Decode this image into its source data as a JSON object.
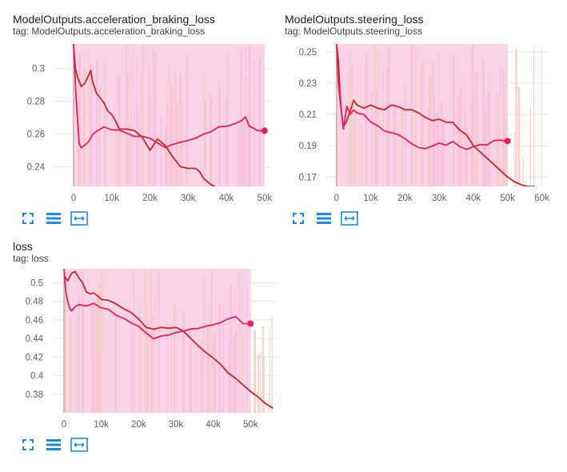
{
  "cards": [
    {
      "title": "ModelOutputs.acceleration_braking_loss",
      "tag": "tag: ModelOutputs.acceleration_braking_loss"
    },
    {
      "title": "ModelOutputs.steering_loss",
      "tag": "tag: ModelOutputs.steering_loss"
    },
    {
      "title": "loss",
      "tag": "tag: loss"
    }
  ],
  "toolbar_icons": [
    "fullscreen-icon",
    "toggle-log-scale-icon",
    "fit-domain-icon"
  ],
  "colors": {
    "smoothed_pink": "#e91e63",
    "smoothed_red": "#c62828",
    "raw_pink": "#f8bbd9",
    "raw_red": "#f5cfc8",
    "grid": "#e6e6e6"
  },
  "chart_data": [
    {
      "type": "line",
      "title": "ModelOutputs.acceleration_braking_loss",
      "xlim": [
        -5000,
        51500
      ],
      "ylim": [
        0.228,
        0.315
      ],
      "xticks": [
        0,
        10000,
        20000,
        30000,
        40000,
        50000
      ],
      "xtick_labels": [
        "0",
        "10k",
        "20k",
        "30k",
        "40k",
        "50k"
      ],
      "yticks": [
        0.24,
        0.26,
        0.28,
        0.3
      ],
      "ytick_labels": [
        "0.24",
        "0.26",
        "0.28",
        "0.3"
      ],
      "grid": true,
      "series": [
        {
          "color": "#e91e63",
          "x": [
            0,
            500,
            1000,
            1500,
            2000,
            3000,
            4000,
            5000,
            6000,
            8000,
            10000,
            12000,
            14000,
            16000,
            18000,
            20000,
            22000,
            24000,
            26000,
            28000,
            30000,
            32000,
            34000,
            36000,
            38000,
            40000,
            42000,
            44000,
            45000,
            46000,
            48000,
            50000
          ],
          "y": [
            0.315,
            0.29,
            0.27,
            0.254,
            0.251,
            0.253,
            0.256,
            0.26,
            0.262,
            0.265,
            0.263,
            0.262,
            0.26,
            0.259,
            0.258,
            0.258,
            0.255,
            0.252,
            0.254,
            0.255,
            0.256,
            0.258,
            0.26,
            0.262,
            0.264,
            0.265,
            0.266,
            0.268,
            0.27,
            0.265,
            0.262,
            0.262
          ]
        },
        {
          "color": "#c62828",
          "x": [
            0,
            500,
            1000,
            1500,
            2000,
            3000,
            4000,
            4500,
            5000,
            6000,
            7000,
            8000,
            9000,
            10000,
            11000,
            12000,
            14000,
            16000,
            18000,
            20000,
            22000,
            24000,
            26000,
            28000,
            30000,
            32000,
            33000,
            34000,
            35000,
            36000,
            37000
          ],
          "y": [
            0.315,
            0.3,
            0.295,
            0.292,
            0.289,
            0.291,
            0.296,
            0.299,
            0.292,
            0.285,
            0.282,
            0.279,
            0.274,
            0.272,
            0.268,
            0.263,
            0.263,
            0.262,
            0.258,
            0.25,
            0.257,
            0.253,
            0.246,
            0.24,
            0.239,
            0.239,
            0.237,
            0.233,
            0.231,
            0.229,
            0.228
          ]
        }
      ]
    },
    {
      "type": "line",
      "title": "ModelOutputs.steering_loss",
      "xlim": [
        -3000,
        62000
      ],
      "ylim": [
        0.164,
        0.255
      ],
      "xticks": [
        0,
        10000,
        20000,
        30000,
        40000,
        50000,
        60000
      ],
      "xtick_labels": [
        "0",
        "10k",
        "20k",
        "30k",
        "40k",
        "50k",
        "60k"
      ],
      "yticks": [
        0.17,
        0.19,
        0.21,
        0.23,
        0.25
      ],
      "ytick_labels": [
        "0.17",
        "0.19",
        "0.21",
        "0.23",
        "0.25"
      ],
      "grid": true,
      "series": [
        {
          "color": "#e91e63",
          "x": [
            0,
            500,
            1000,
            1500,
            2000,
            3000,
            4000,
            5000,
            6000,
            8000,
            10000,
            12000,
            14000,
            16000,
            18000,
            20000,
            22000,
            24000,
            26000,
            28000,
            30000,
            32000,
            34000,
            36000,
            38000,
            40000,
            42000,
            44000,
            46000,
            48000,
            50000
          ],
          "y": [
            0.255,
            0.23,
            0.22,
            0.21,
            0.2,
            0.215,
            0.21,
            0.213,
            0.211,
            0.21,
            0.205,
            0.203,
            0.2,
            0.199,
            0.197,
            0.195,
            0.192,
            0.189,
            0.188,
            0.19,
            0.191,
            0.19,
            0.192,
            0.19,
            0.187,
            0.189,
            0.191,
            0.19,
            0.193,
            0.193,
            0.193
          ]
        },
        {
          "color": "#c62828",
          "x": [
            0,
            500,
            1000,
            1500,
            2000,
            3000,
            4000,
            5000,
            6000,
            8000,
            10000,
            12000,
            14000,
            16000,
            18000,
            20000,
            22000,
            24000,
            26000,
            28000,
            30000,
            32000,
            34000,
            36000,
            38000,
            40000,
            42000,
            44000,
            46000,
            48000,
            50000,
            52000,
            54000,
            56000,
            58000
          ],
          "y": [
            0.255,
            0.245,
            0.225,
            0.21,
            0.202,
            0.206,
            0.212,
            0.219,
            0.216,
            0.214,
            0.216,
            0.214,
            0.213,
            0.216,
            0.215,
            0.213,
            0.213,
            0.211,
            0.208,
            0.206,
            0.207,
            0.205,
            0.205,
            0.2,
            0.197,
            0.19,
            0.186,
            0.182,
            0.178,
            0.174,
            0.17,
            0.167,
            0.165,
            0.164,
            0.164
          ]
        }
      ]
    },
    {
      "type": "line",
      "title": "loss",
      "xlim": [
        -3000,
        57000
      ],
      "ylim": [
        0.36,
        0.515
      ],
      "xticks": [
        0,
        10000,
        20000,
        30000,
        40000,
        50000
      ],
      "xtick_labels": [
        "0",
        "10k",
        "20k",
        "30k",
        "40k",
        "50k"
      ],
      "yticks": [
        0.38,
        0.4,
        0.42,
        0.44,
        0.46,
        0.48,
        0.5
      ],
      "ytick_labels": [
        "0.38",
        "0.4",
        "0.42",
        "0.44",
        "0.46",
        "0.48",
        "0.5"
      ],
      "grid": true,
      "series": [
        {
          "color": "#e91e63",
          "x": [
            0,
            500,
            1000,
            1500,
            2000,
            3000,
            4000,
            5000,
            6000,
            8000,
            10000,
            12000,
            14000,
            16000,
            18000,
            20000,
            22000,
            24000,
            26000,
            28000,
            30000,
            32000,
            34000,
            36000,
            38000,
            40000,
            42000,
            44000,
            46000,
            48000,
            50000
          ],
          "y": [
            0.515,
            0.49,
            0.48,
            0.472,
            0.47,
            0.473,
            0.476,
            0.476,
            0.474,
            0.478,
            0.474,
            0.47,
            0.466,
            0.461,
            0.457,
            0.452,
            0.447,
            0.44,
            0.442,
            0.444,
            0.446,
            0.448,
            0.45,
            0.452,
            0.454,
            0.456,
            0.458,
            0.46,
            0.463,
            0.456,
            0.456
          ]
        },
        {
          "color": "#c62828",
          "x": [
            0,
            1000,
            2000,
            3000,
            4000,
            5000,
            6000,
            7000,
            8000,
            9000,
            10000,
            12000,
            14000,
            16000,
            18000,
            20000,
            22000,
            24000,
            26000,
            28000,
            30000,
            32000,
            34000,
            36000,
            38000,
            40000,
            42000,
            44000,
            46000,
            48000,
            50000,
            52000,
            54000,
            56000
          ],
          "y": [
            0.508,
            0.502,
            0.51,
            0.512,
            0.505,
            0.5,
            0.49,
            0.488,
            0.489,
            0.486,
            0.482,
            0.481,
            0.477,
            0.472,
            0.468,
            0.461,
            0.452,
            0.45,
            0.452,
            0.451,
            0.452,
            0.448,
            0.44,
            0.432,
            0.425,
            0.419,
            0.412,
            0.403,
            0.397,
            0.39,
            0.383,
            0.377,
            0.37,
            0.365
          ]
        }
      ]
    }
  ]
}
